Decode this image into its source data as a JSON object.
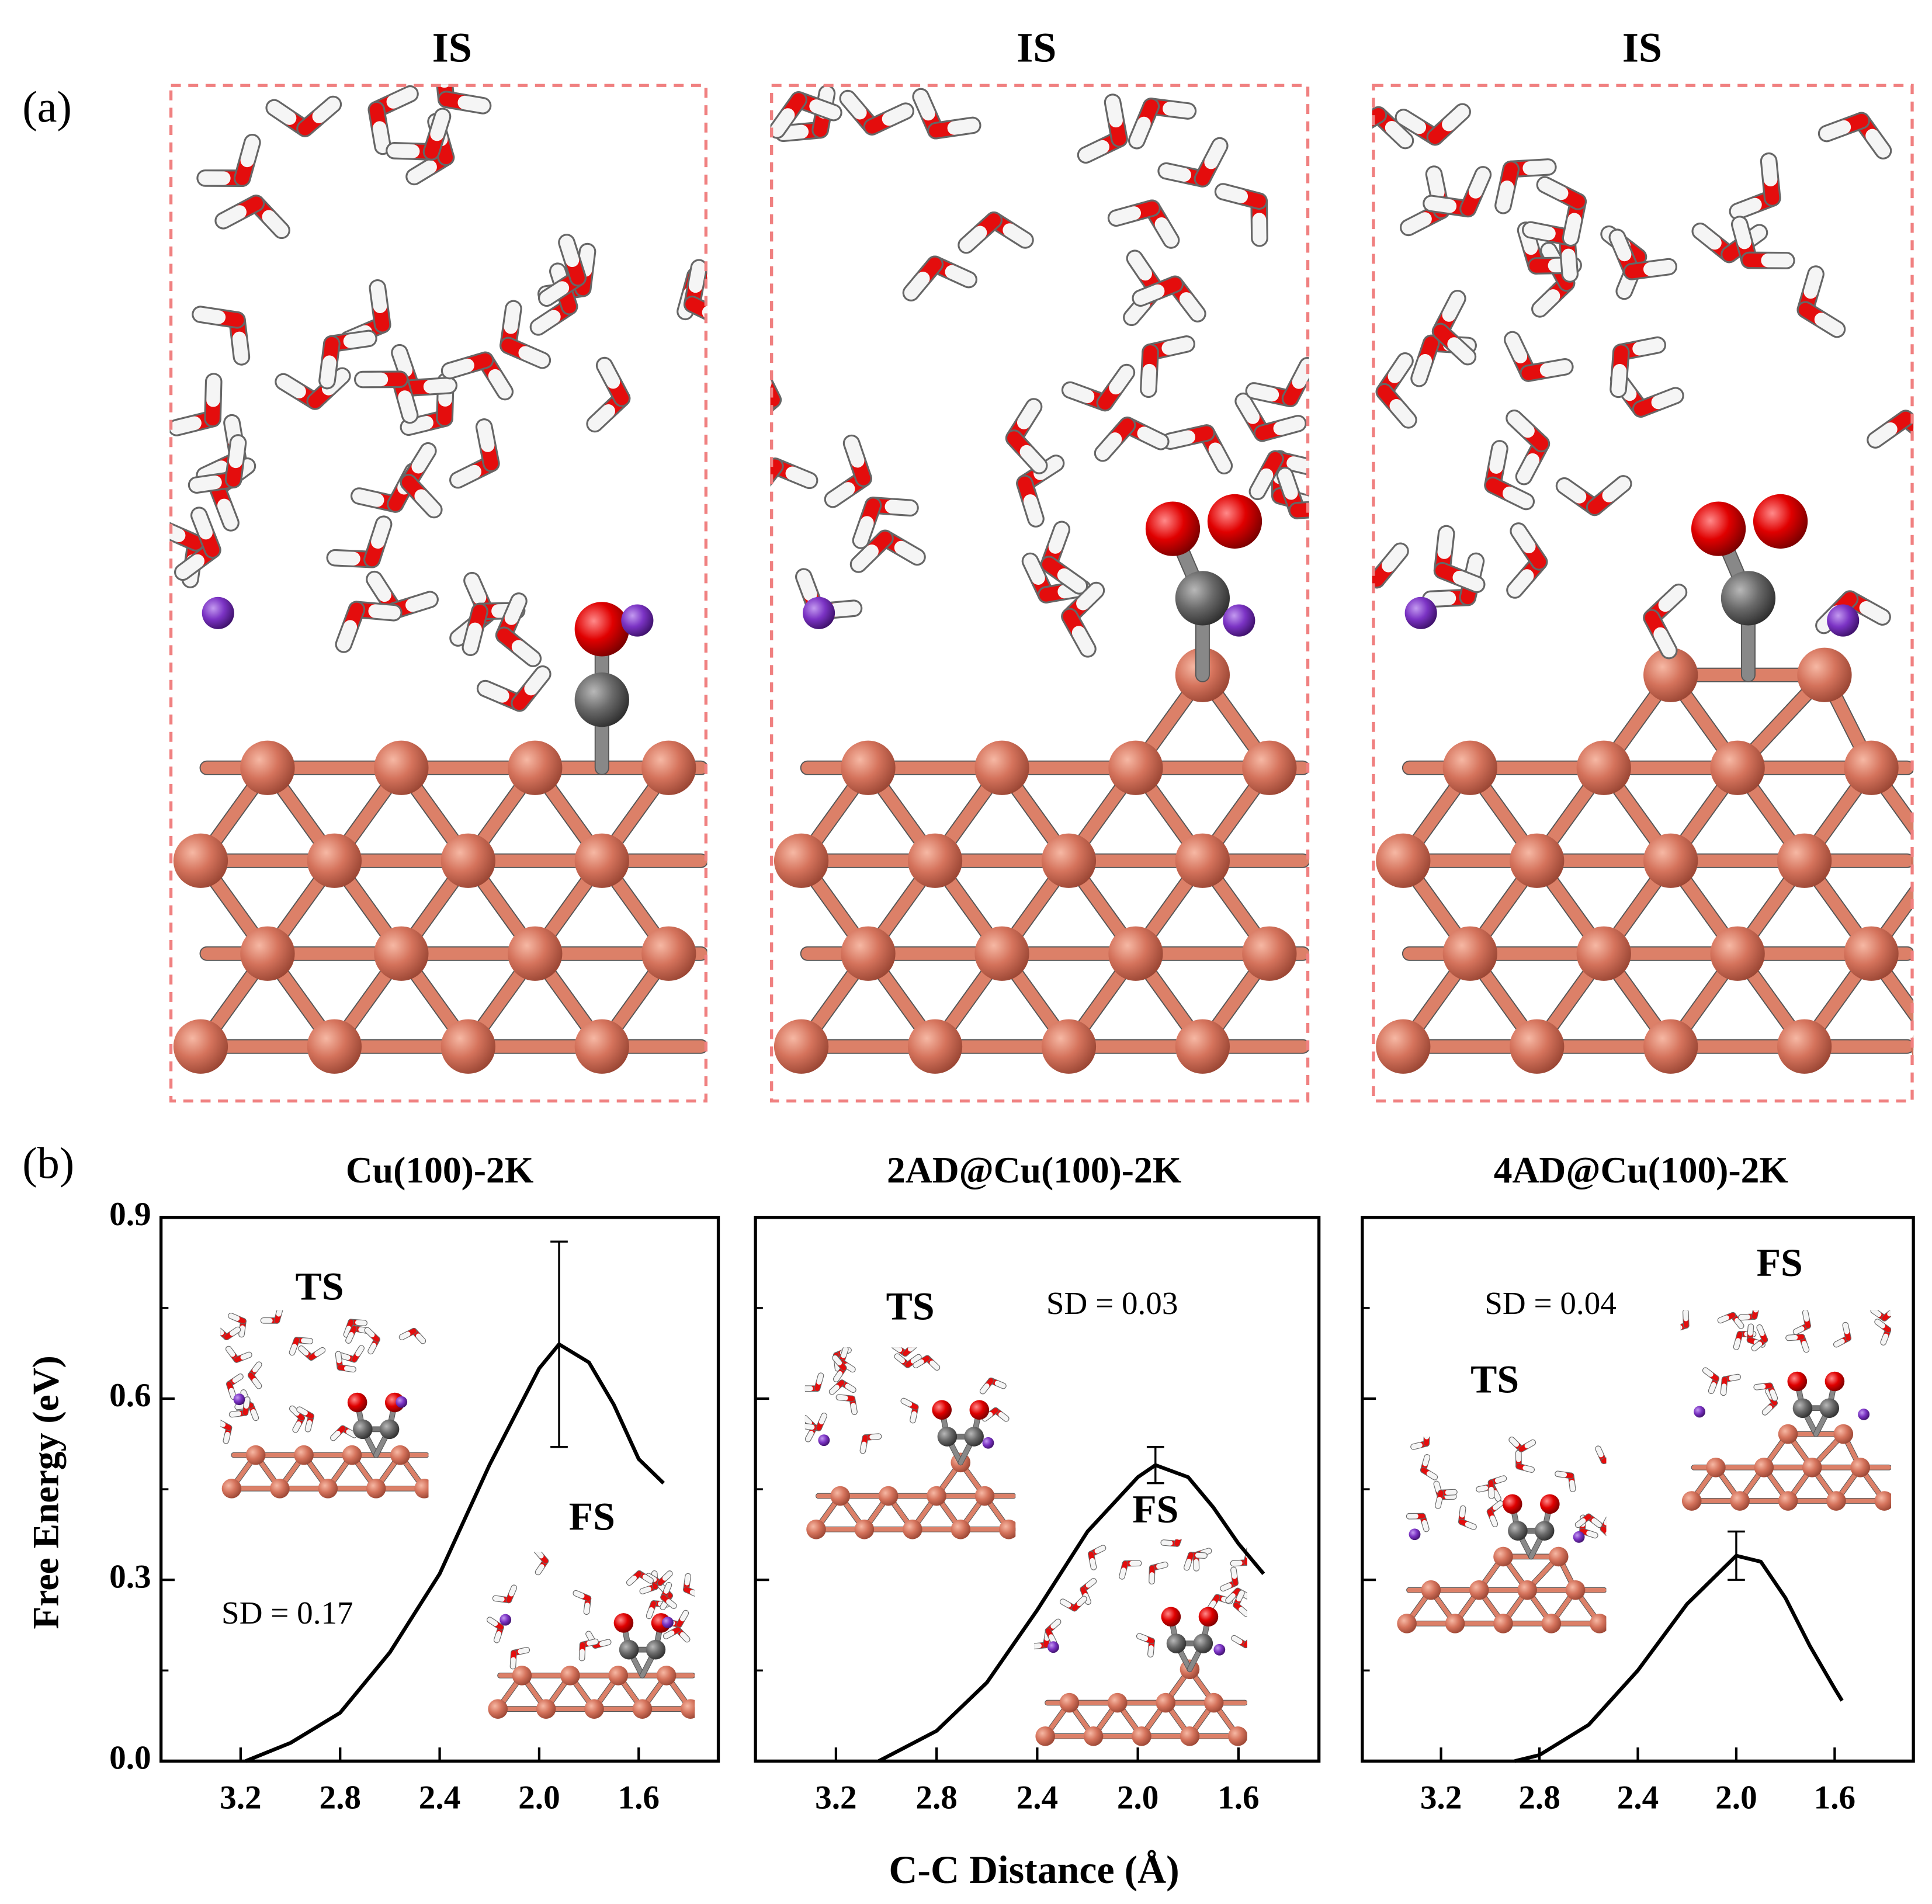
{
  "panel_labels": [
    "(a)",
    "(b)"
  ],
  "structures": [
    {
      "title": "IS"
    },
    {
      "title": "IS"
    },
    {
      "title": "IS"
    }
  ],
  "axis_labels": {
    "x": "C-C Distance (Å)",
    "y": "Free Energy (eV)"
  },
  "chart_data": [
    {
      "type": "line",
      "title": "Cu(100)-2K",
      "color": "#000000",
      "x": [
        3.18,
        3.0,
        2.8,
        2.6,
        2.4,
        2.2,
        2.0,
        1.92,
        1.8,
        1.7,
        1.6,
        1.5
      ],
      "values": [
        0,
        0.03,
        0.08,
        0.18,
        0.31,
        0.49,
        0.65,
        0.69,
        0.66,
        0.59,
        0.5,
        0.46
      ],
      "errors": [
        null,
        null,
        null,
        null,
        null,
        null,
        null,
        0.17,
        null,
        null,
        null,
        null
      ],
      "annotations": [
        "TS",
        "FS",
        "SD = 0.17"
      ],
      "xlim": [
        3.52,
        1.28
      ],
      "xticks": [
        3.2,
        2.8,
        2.4,
        {
          "value": 2,
          "label": "2.0"
        },
        1.6
      ],
      "ylim": [
        0,
        0.9
      ],
      "yticks": [
        {
          "value": 0,
          "label": "0.0"
        },
        0.3,
        0.6,
        0.9
      ],
      "y_tick_labels": true
    },
    {
      "type": "line",
      "title": "2AD@Cu(100)-2K",
      "color": "#000000",
      "x": [
        3.03,
        2.8,
        2.6,
        2.4,
        2.2,
        2.0,
        1.93,
        1.8,
        1.7,
        1.6,
        1.5
      ],
      "values": [
        0,
        0.05,
        0.13,
        0.25,
        0.38,
        0.47,
        0.49,
        0.47,
        0.42,
        0.36,
        0.31
      ],
      "errors": [
        null,
        null,
        null,
        null,
        null,
        null,
        0.03,
        null,
        null,
        null,
        null
      ],
      "annotations": [
        "TS",
        "SD = 0.03",
        "FS"
      ],
      "xlim": [
        3.52,
        1.28
      ],
      "xticks": [
        3.2,
        2.8,
        2.4,
        {
          "value": 2,
          "label": "2.0"
        },
        1.6
      ],
      "ylim": [
        0,
        0.9
      ],
      "yticks": [
        {
          "value": 0,
          "label": "0.0"
        },
        0.3,
        0.6,
        0.9
      ],
      "y_tick_labels": false
    },
    {
      "type": "line",
      "title": "4AD@Cu(100)-2K",
      "color": "#000000",
      "x": [
        2.9,
        2.8,
        2.6,
        2.4,
        2.2,
        2.0,
        1.9,
        1.8,
        1.7,
        1.6,
        1.57
      ],
      "values": [
        0,
        0.01,
        0.06,
        0.15,
        0.26,
        0.34,
        0.33,
        0.27,
        0.19,
        0.12,
        0.1
      ],
      "errors": [
        null,
        null,
        null,
        null,
        null,
        0.04,
        null,
        null,
        null,
        null,
        null
      ],
      "annotations": [
        "SD = 0.04",
        "TS",
        "FS"
      ],
      "xlim": [
        3.52,
        1.28
      ],
      "xticks": [
        3.2,
        2.8,
        2.4,
        {
          "value": 2,
          "label": "2.0"
        },
        1.6
      ],
      "ylim": [
        0,
        0.9
      ],
      "yticks": [
        {
          "value": 0,
          "label": "0.0"
        },
        0.3,
        0.6,
        0.9
      ],
      "y_tick_labels": false
    }
  ]
}
